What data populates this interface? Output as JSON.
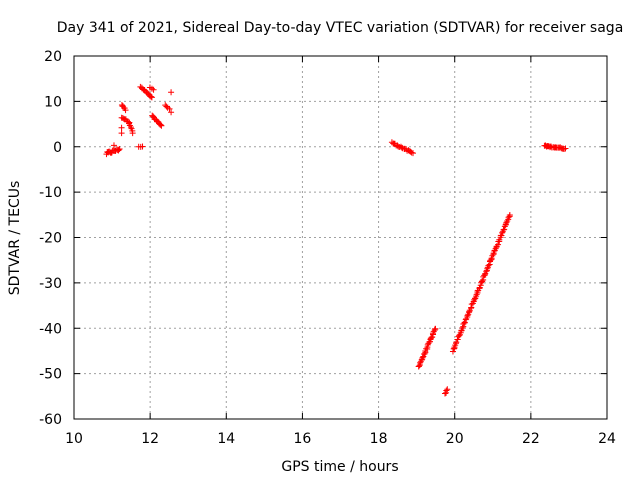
{
  "chart_data": {
    "type": "scatter",
    "title": "Day 341 of 2021, Sidereal Day-to-day VTEC variation (SDTVAR) for receiver saga",
    "xlabel": "GPS time / hours",
    "ylabel": "SDTVAR / TECUs",
    "xlim": [
      10,
      24
    ],
    "ylim": [
      -60,
      20
    ],
    "xticks": [
      10,
      12,
      14,
      16,
      18,
      20,
      22,
      24
    ],
    "yticks": [
      -60,
      -50,
      -40,
      -30,
      -20,
      -10,
      0,
      10,
      20
    ],
    "xtick_labels": [
      "10",
      "12",
      "14",
      "16",
      "18",
      "20",
      "22",
      "24"
    ],
    "ytick_labels": [
      "-60",
      "-50",
      "-40",
      "-30",
      "-20",
      "-10",
      "0",
      "10",
      "20"
    ],
    "grid": true,
    "marker": "+",
    "color": "#ff0000",
    "segments": [
      {
        "from": [
          10.85,
          -1.5
        ],
        "to": [
          11.2,
          -0.5
        ],
        "n": 18,
        "jitter": 0.6
      },
      {
        "from": [
          11.25,
          9.2
        ],
        "to": [
          11.35,
          8.2
        ],
        "n": 6,
        "jitter": 0.3
      },
      {
        "from": [
          11.25,
          6.5
        ],
        "to": [
          11.45,
          5.5
        ],
        "n": 8,
        "jitter": 0.3
      },
      {
        "from": [
          11.45,
          5.2
        ],
        "to": [
          11.55,
          3.0
        ],
        "n": 6,
        "jitter": 0.3
      },
      {
        "from": [
          11.7,
          0.0
        ],
        "to": [
          11.8,
          0.0
        ],
        "n": 3,
        "jitter": 0.1
      },
      {
        "from": [
          11.75,
          13.2
        ],
        "to": [
          12.05,
          10.8
        ],
        "n": 14,
        "jitter": 0.2
      },
      {
        "from": [
          12.0,
          13.0
        ],
        "to": [
          12.1,
          12.6
        ],
        "n": 3,
        "jitter": 0.2
      },
      {
        "from": [
          12.05,
          6.8
        ],
        "to": [
          12.3,
          4.6
        ],
        "n": 12,
        "jitter": 0.2
      },
      {
        "from": [
          12.4,
          9.2
        ],
        "to": [
          12.5,
          8.3
        ],
        "n": 4,
        "jitter": 0.2
      },
      {
        "from": [
          18.35,
          0.9
        ],
        "to": [
          18.9,
          -1.4
        ],
        "n": 20,
        "jitter": 0.3
      },
      {
        "from": [
          19.05,
          -48.5
        ],
        "to": [
          19.5,
          -40.0
        ],
        "n": 30,
        "jitter": 0.4
      },
      {
        "from": [
          19.75,
          -54.5
        ],
        "to": [
          19.8,
          -53.5
        ],
        "n": 4,
        "jitter": 0.3
      },
      {
        "from": [
          19.95,
          -45.0
        ],
        "to": [
          21.45,
          -15.0
        ],
        "n": 90,
        "jitter": 0.4
      },
      {
        "from": [
          22.35,
          0.2
        ],
        "to": [
          22.9,
          -0.4
        ],
        "n": 22,
        "jitter": 0.25
      }
    ],
    "points": [
      {
        "x": 11.25,
        "y": 3.0
      },
      {
        "x": 11.25,
        "y": 4.2
      },
      {
        "x": 12.55,
        "y": 12.0
      },
      {
        "x": 12.55,
        "y": 7.6
      },
      {
        "x": 11.05,
        "y": 0.3
      }
    ]
  }
}
